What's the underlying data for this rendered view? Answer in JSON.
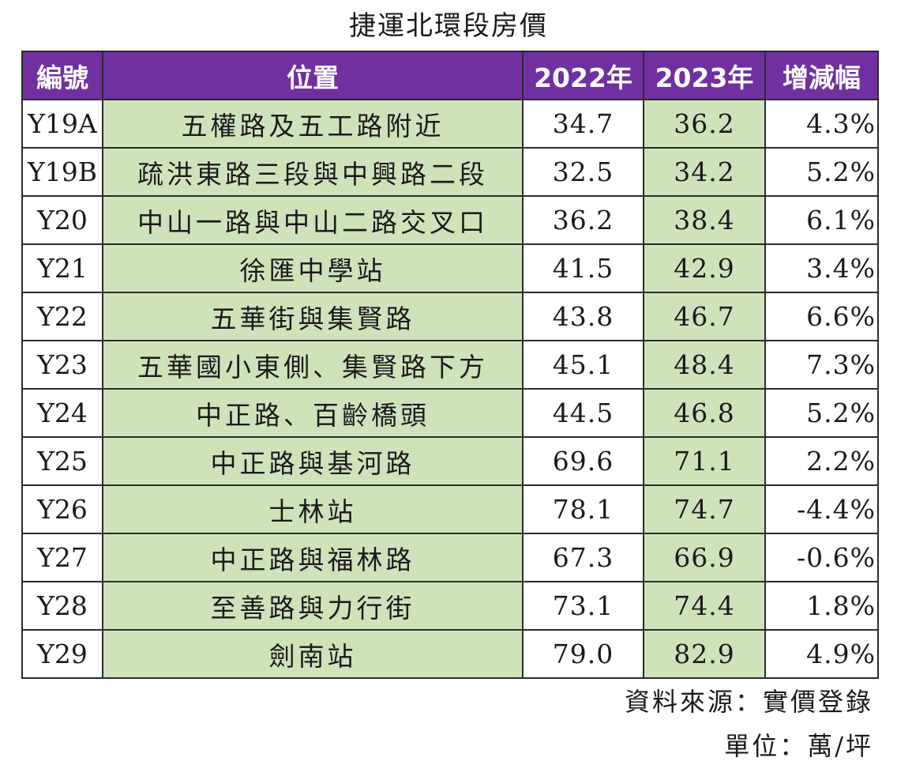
{
  "title": "捷運北環段房價",
  "table": {
    "headers": {
      "id": "編號",
      "location": "位置",
      "y2022": "2022年",
      "y2023": "2023年",
      "change": "增減幅"
    },
    "rows": [
      {
        "id": "Y19A",
        "location": "五權路及五工路附近",
        "y2022": "34.7",
        "y2023": "36.2",
        "change": "4.3%"
      },
      {
        "id": "Y19B",
        "location": "疏洪東路三段與中興路二段",
        "y2022": "32.5",
        "y2023": "34.2",
        "change": "5.2%"
      },
      {
        "id": "Y20",
        "location": "中山一路與中山二路交叉口",
        "y2022": "36.2",
        "y2023": "38.4",
        "change": "6.1%"
      },
      {
        "id": "Y21",
        "location": "徐匯中學站",
        "y2022": "41.5",
        "y2023": "42.9",
        "change": "3.4%"
      },
      {
        "id": "Y22",
        "location": "五華街與集賢路",
        "y2022": "43.8",
        "y2023": "46.7",
        "change": "6.6%"
      },
      {
        "id": "Y23",
        "location": "五華國小東側、集賢路下方",
        "y2022": "45.1",
        "y2023": "48.4",
        "change": "7.3%"
      },
      {
        "id": "Y24",
        "location": "中正路、百齡橋頭",
        "y2022": "44.5",
        "y2023": "46.8",
        "change": "5.2%"
      },
      {
        "id": "Y25",
        "location": "中正路與基河路",
        "y2022": "69.6",
        "y2023": "71.1",
        "change": "2.2%"
      },
      {
        "id": "Y26",
        "location": "士林站",
        "y2022": "78.1",
        "y2023": "74.7",
        "change": "-4.4%"
      },
      {
        "id": "Y27",
        "location": "中正路與福林路",
        "y2022": "67.3",
        "y2023": "66.9",
        "change": "-0.6%"
      },
      {
        "id": "Y28",
        "location": "至善路與力行街",
        "y2022": "73.1",
        "y2023": "74.4",
        "change": "1.8%"
      },
      {
        "id": "Y29",
        "location": "劍南站",
        "y2022": "79.0",
        "y2023": "82.9",
        "change": "4.9%"
      }
    ]
  },
  "footer": {
    "source": "資料來源：實價登錄",
    "unit": "單位：萬/坪"
  },
  "colors": {
    "header_bg": "#7030a0",
    "header_text": "#ffffff",
    "green_cell": "#cfe3bb",
    "white_cell": "#ffffff",
    "border": "#2b2b2b"
  }
}
